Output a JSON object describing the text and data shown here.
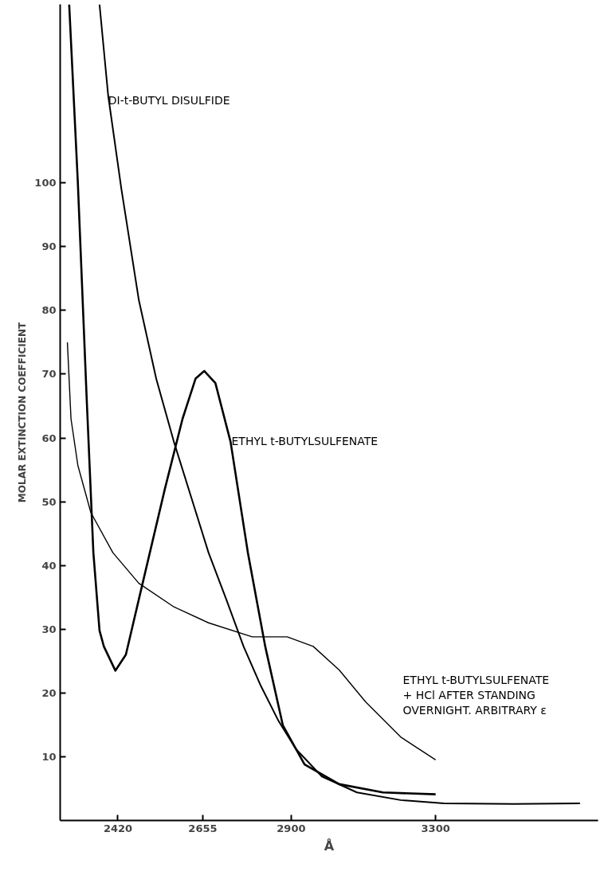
{
  "chart_data": {
    "type": "line",
    "xlabel": "Å",
    "ylabel": "MOLAR EXTINCTION COEFFICIENT",
    "xlim": [
      2260,
      3750
    ],
    "ylim": [
      0,
      128
    ],
    "xticks": [
      2420,
      2655,
      2900,
      3300
    ],
    "yticks": [
      10,
      20,
      30,
      40,
      50,
      60,
      70,
      80,
      90,
      100
    ],
    "grid": false,
    "marker": "none",
    "line_style": "solid",
    "series": [
      {
        "color": "#000000",
        "x": [
          2285,
          2309,
          2333,
          2352,
          2369,
          2381,
          2413,
          2442,
          2478,
          2550,
          2599,
          2635,
          2659,
          2690,
          2732,
          2780,
          2828,
          2877,
          2937,
          3033,
          3154,
          3300
        ],
        "values": [
          128,
          100,
          66.8,
          42,
          29.8,
          27.3,
          23.5,
          26,
          34.7,
          52,
          63,
          69.3,
          70.5,
          68.6,
          59.4,
          42,
          27.3,
          14.9,
          8.8,
          5.7,
          4.4,
          4.1
        ]
      },
      {
        "color": "#000000",
        "x": [
          2280,
          2290,
          2309,
          2345,
          2406,
          2478,
          2575,
          2671,
          2792,
          2889,
          2961,
          3033,
          3106,
          3203,
          3300
        ],
        "values": [
          75,
          63,
          55.7,
          48.3,
          42,
          37.2,
          33.5,
          31,
          28.8,
          28.8,
          27.3,
          23.6,
          18.6,
          13.1,
          9.5
        ]
      },
      {
        "color": "#000000",
        "x": [
          2369,
          2393,
          2430,
          2478,
          2526,
          2575,
          2623,
          2671,
          2720,
          2768,
          2816,
          2865,
          2913,
          2985,
          3082,
          3203,
          3323,
          3517,
          3700
        ],
        "values": [
          128,
          113.7,
          98.9,
          81.6,
          69.3,
          59.4,
          50.7,
          42,
          34.7,
          27.3,
          21.1,
          15.6,
          11.2,
          6.9,
          4.4,
          3.2,
          2.7,
          2.6,
          2.7
        ]
      }
    ],
    "annotations": [
      {
        "text": "DI-t-BUTYL DISULFIDE",
        "x": 2393,
        "y": 114
      },
      "ETHYL t-BUTYLSULFENATE",
      "ETHYL t-BUTYLSULFENATE\n+ HCl AFTER STANDING\nOVERNIGHT. ARBITRARY ε"
    ]
  }
}
